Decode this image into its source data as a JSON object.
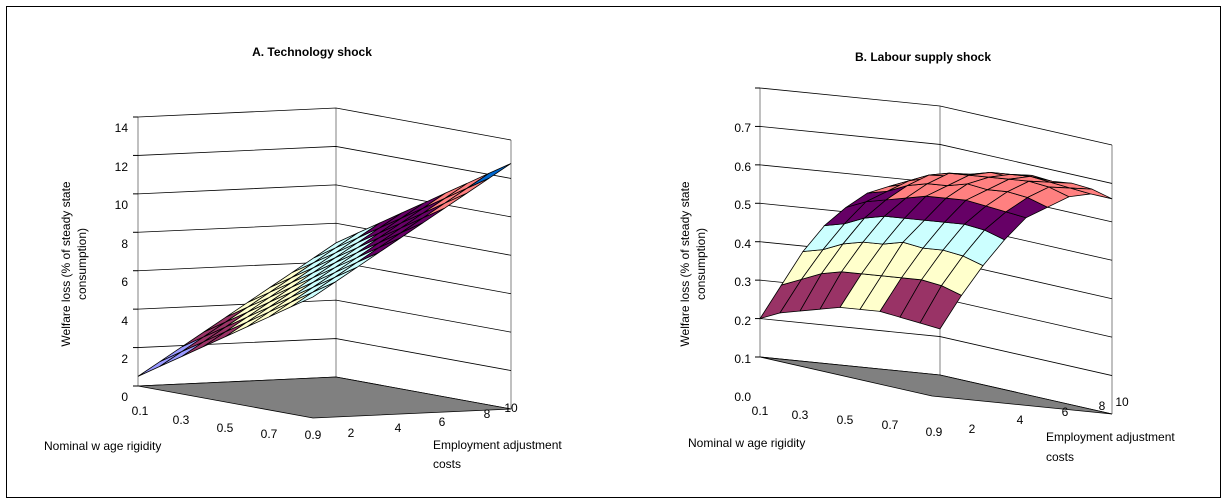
{
  "charts": [
    {
      "title": "A. Technology shock",
      "ylabel_line1": "Welfare loss (% of steady state",
      "ylabel_line2": "consumption)",
      "xlabel": "Nominal w age rigidity",
      "zlabel_line1": "Employment adjustment",
      "zlabel_line2": "costs",
      "y_ticks": [
        "0",
        "2",
        "4",
        "6",
        "8",
        "10",
        "12",
        "14"
      ],
      "x_ticks": [
        "0.1",
        "0.3",
        "0.5",
        "0.7",
        "0.9"
      ],
      "z_ticks": [
        "2",
        "4",
        "6",
        "8",
        "10"
      ]
    },
    {
      "title": "B. Labour supply shock",
      "ylabel_line1": "Welfare loss (% of steady state",
      "ylabel_line2": "consumption)",
      "xlabel": "Nominal w age rigidity",
      "zlabel_line1": "Employment adjustment",
      "zlabel_line2": "costs",
      "y_ticks": [
        "0.0",
        "0.1",
        "0.2",
        "0.3",
        "0.4",
        "0.5",
        "0.6",
        "0.7"
      ],
      "x_ticks": [
        "0.1",
        "0.3",
        "0.5",
        "0.7",
        "0.9"
      ],
      "z_ticks": [
        "2",
        "4",
        "6",
        "8",
        "10"
      ]
    }
  ],
  "chart_data": [
    {
      "type": "surface",
      "title": "A. Technology shock",
      "x_name": "Nominal wage rigidity",
      "z_name": "Employment adjustment costs",
      "y_name": "Welfare loss (% of steady state consumption)",
      "x": [
        0.1,
        0.2,
        0.3,
        0.4,
        0.5,
        0.6,
        0.7,
        0.8,
        0.9
      ],
      "z": [
        1,
        2,
        3,
        4,
        5,
        6,
        7,
        8,
        9,
        10
      ],
      "ylim": [
        0,
        14
      ],
      "band_step": 2,
      "band_colors": [
        "#9999ff",
        "#993366",
        "#ffffcc",
        "#ccffff",
        "#660066",
        "#ff8080",
        "#0066cc"
      ],
      "surface": "y = 0.5 + 5.8*(x-0.1)/0.8 + 0.72*(z-1)",
      "values": [
        [
          0.5,
          1.22,
          1.94,
          2.66,
          3.38,
          4.1,
          4.82,
          5.54,
          6.26,
          6.98
        ],
        [
          1.23,
          1.95,
          2.67,
          3.39,
          4.11,
          4.83,
          5.55,
          6.27,
          6.99,
          7.71
        ],
        [
          1.95,
          2.67,
          3.39,
          4.11,
          4.83,
          5.55,
          6.27,
          6.99,
          7.71,
          8.43
        ],
        [
          2.68,
          3.4,
          4.12,
          4.84,
          5.56,
          6.28,
          7.0,
          7.72,
          8.44,
          9.16
        ],
        [
          3.4,
          4.12,
          4.84,
          5.56,
          6.28,
          7.0,
          7.72,
          8.44,
          9.16,
          9.88
        ],
        [
          4.13,
          4.85,
          5.57,
          6.29,
          7.01,
          7.73,
          8.45,
          9.17,
          9.89,
          10.61
        ],
        [
          4.85,
          5.57,
          6.29,
          7.01,
          7.73,
          8.45,
          9.17,
          9.89,
          10.61,
          11.33
        ],
        [
          5.58,
          6.3,
          7.02,
          7.74,
          8.46,
          9.18,
          9.9,
          10.62,
          11.34,
          12.06
        ],
        [
          6.3,
          7.02,
          7.74,
          8.46,
          9.18,
          9.9,
          10.62,
          11.34,
          12.06,
          12.78
        ]
      ]
    },
    {
      "type": "surface",
      "title": "B. Labour supply shock",
      "x_name": "Nominal wage rigidity",
      "z_name": "Employment adjustment costs",
      "y_name": "Welfare loss (% of steady state consumption)",
      "x": [
        0.1,
        0.2,
        0.3,
        0.4,
        0.5,
        0.6,
        0.7,
        0.8,
        0.9
      ],
      "z": [
        1,
        2,
        3,
        4,
        5,
        6,
        7,
        8,
        9,
        10
      ],
      "ylim": [
        0,
        0.7
      ],
      "band_step": 0.1,
      "band_colors": [
        "#9999ff",
        "#993366",
        "#ffffcc",
        "#ccffff",
        "#660066",
        "#ff8080",
        "#0066cc"
      ],
      "surface": "y = 0.10 + 0.45*(1-(1-t)^2) + 0.05*(1-((z-6)/5)^2), t=(x-0.1)/0.8",
      "values": [
        [
          0.1,
          0.12,
          0.13,
          0.14,
          0.15,
          0.15,
          0.15,
          0.14,
          0.13,
          0.12
        ],
        [
          0.2,
          0.22,
          0.24,
          0.25,
          0.25,
          0.25,
          0.25,
          0.25,
          0.24,
          0.22
        ],
        [
          0.3,
          0.31,
          0.33,
          0.34,
          0.34,
          0.35,
          0.34,
          0.34,
          0.33,
          0.31
        ],
        [
          0.38,
          0.39,
          0.41,
          0.42,
          0.42,
          0.42,
          0.42,
          0.42,
          0.41,
          0.39
        ],
        [
          0.44,
          0.46,
          0.47,
          0.48,
          0.49,
          0.49,
          0.49,
          0.48,
          0.47,
          0.46
        ],
        [
          0.49,
          0.5,
          0.52,
          0.53,
          0.53,
          0.54,
          0.53,
          0.53,
          0.52,
          0.5
        ],
        [
          0.52,
          0.54,
          0.56,
          0.57,
          0.57,
          0.57,
          0.57,
          0.57,
          0.56,
          0.54
        ],
        [
          0.54,
          0.56,
          0.57,
          0.58,
          0.59,
          0.59,
          0.59,
          0.58,
          0.57,
          0.56
        ],
        [
          0.55,
          0.56,
          0.58,
          0.59,
          0.59,
          0.6,
          0.59,
          0.59,
          0.58,
          0.56
        ]
      ]
    }
  ]
}
